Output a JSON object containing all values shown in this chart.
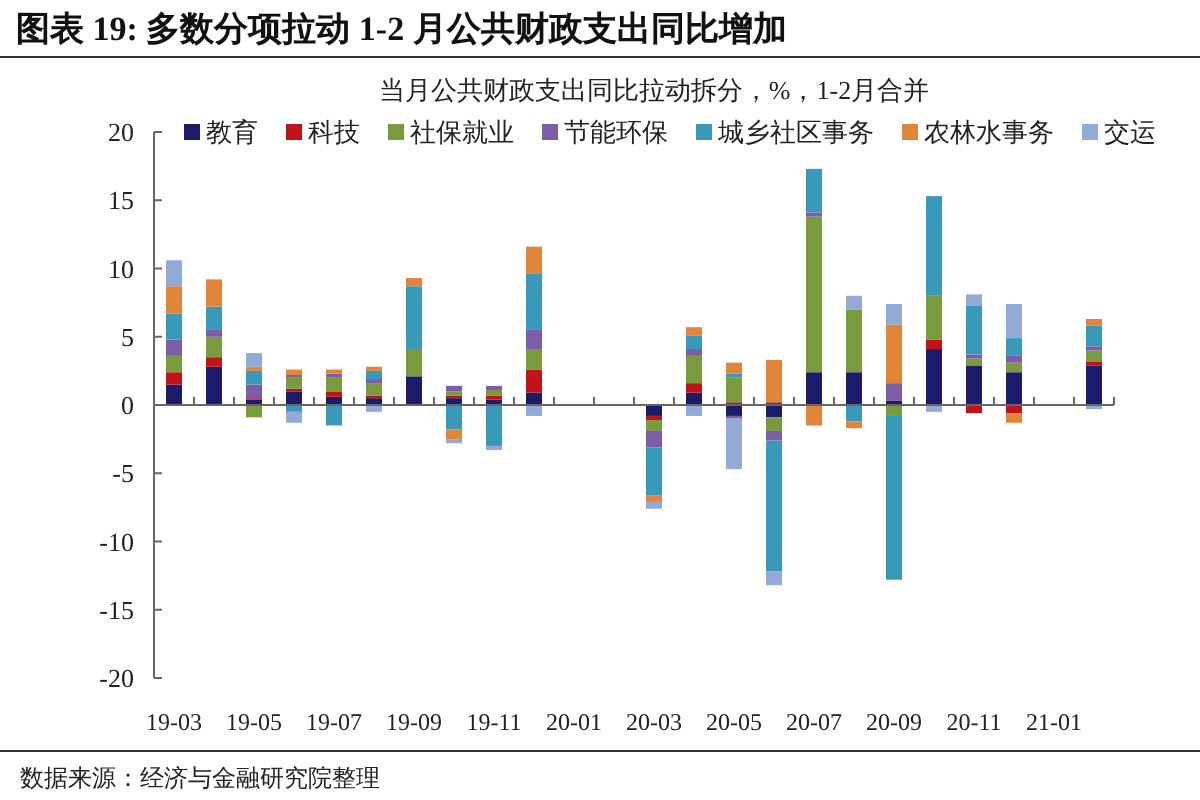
{
  "chart_data": {
    "type": "bar",
    "stacked": true,
    "title": "图表 19: 多数分项拉动 1-2 月公共财政支出同比增加",
    "subtitle": "当月公共财政支出同比拉动拆分，%，1-2月合并",
    "annotations": [
      "数据来源：经济与金融研究院整理"
    ],
    "categories": [
      "19-03",
      null,
      "19-05",
      null,
      "19-07",
      null,
      "19-09",
      null,
      "19-11",
      null,
      "20-01",
      null,
      "20-03",
      null,
      "20-05",
      null,
      "20-07",
      null,
      "20-09",
      null,
      "20-11",
      null,
      "21-01",
      null
    ],
    "ylim": [
      -20,
      20
    ],
    "yticks": [
      -20,
      -15,
      -10,
      -5,
      0,
      5,
      10,
      15,
      20
    ],
    "legend": "top",
    "series": [
      {
        "name": "教育",
        "color": "#1c1c6b",
        "values": [
          1.5,
          2.8,
          0.4,
          1.0,
          0.6,
          0.5,
          2.1,
          0.5,
          0.4,
          0.9,
          null,
          null,
          -0.8,
          0.9,
          -0.8,
          -0.9,
          2.4,
          2.4,
          0.3,
          4.1,
          2.9,
          2.4,
          null,
          2.9
        ]
      },
      {
        "name": "科技",
        "color": "#c0141b",
        "values": [
          0.9,
          0.7,
          0.1,
          0.2,
          0.4,
          0.2,
          0,
          0.2,
          0.3,
          1.7,
          null,
          null,
          -0.3,
          0.7,
          0.2,
          0.2,
          0,
          0,
          0,
          0.7,
          -0.6,
          -0.6,
          null,
          0.3
        ]
      },
      {
        "name": "社保就业",
        "color": "#7a9a3e",
        "values": [
          1.2,
          1.5,
          -0.9,
          0.8,
          1.0,
          0.9,
          2.0,
          0.3,
          0.4,
          1.5,
          null,
          null,
          -0.8,
          2.0,
          1.8,
          -1.0,
          11.4,
          4.6,
          -0.8,
          3.2,
          0.5,
          0.7,
          null,
          0.8
        ]
      },
      {
        "name": "节能环保",
        "color": "#7b5ea7",
        "values": [
          1.2,
          0.5,
          1.0,
          0.2,
          0.3,
          0.3,
          0,
          0.4,
          0.3,
          1.4,
          null,
          null,
          -1.2,
          0.5,
          -0.2,
          -0.7,
          0.3,
          0,
          1.3,
          0,
          0.3,
          0.5,
          null,
          0.3
        ]
      },
      {
        "name": "城乡社区事务",
        "color": "#3a98b9",
        "values": [
          1.9,
          1.7,
          1.0,
          -0.5,
          -1.5,
          0.6,
          4.6,
          -1.8,
          -3.0,
          4.1,
          null,
          null,
          -3.5,
          1.0,
          0.3,
          -9.6,
          3.2,
          -1.2,
          -12.0,
          7.3,
          3.6,
          1.3,
          null,
          1.5
        ]
      },
      {
        "name": "农林水事务",
        "color": "#e0853a",
        "values": [
          2.0,
          2.0,
          0.3,
          0.4,
          0.3,
          0.3,
          0.6,
          -0.7,
          0,
          2.0,
          null,
          null,
          -0.5,
          0.6,
          0.8,
          3.1,
          -1.5,
          -0.5,
          4.3,
          0,
          0,
          -0.7,
          null,
          0.5
        ]
      },
      {
        "name": "交运",
        "color": "#93a9d6",
        "values": [
          1.9,
          0,
          1.0,
          -0.8,
          0,
          -0.5,
          0,
          -0.3,
          -0.3,
          -0.8,
          null,
          null,
          -0.5,
          -0.8,
          -3.7,
          -1.0,
          0,
          1.0,
          1.5,
          -0.5,
          0.8,
          2.5,
          null,
          -0.3
        ]
      }
    ]
  }
}
